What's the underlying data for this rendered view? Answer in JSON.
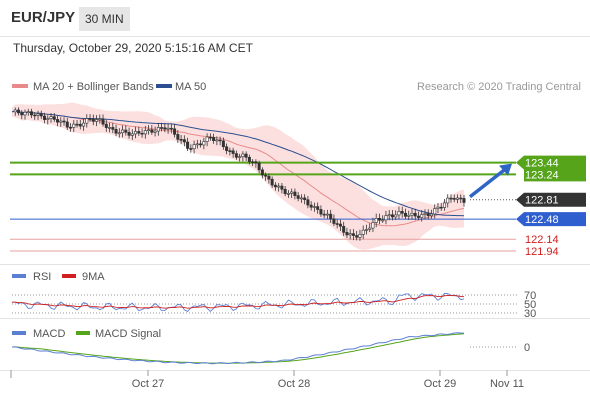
{
  "header": {
    "pair": "EUR/JPY",
    "timeframe": "30 MIN",
    "datetime": "Thursday, October 29, 2020 5:15:16 AM CET"
  },
  "colors": {
    "ma20": "#e88a8a",
    "bollinger_fill": "#fbd5d5",
    "ma50": "#2b4f91",
    "support_blue": "#2f5ecf",
    "resistance_green": "#55a41a",
    "red_level": "#e6a0a0",
    "price_label": "#333333",
    "rsi": "#5b7fd3",
    "rsi_ma": "#d0201f",
    "macd": "#5b7fd3",
    "macd_signal": "#55a41a",
    "candle_up": "#ffffff",
    "candle_down": "#333333"
  },
  "chart_data": [
    {
      "type": "candlestick",
      "legend": [
        "MA 20 + Bollinger Bands",
        "MA 50"
      ],
      "credit": "Research © 2020 Trading Central",
      "levels": [
        {
          "value": 123.44,
          "label": "123.44",
          "kind": "resistance"
        },
        {
          "value": 123.24,
          "label": "123.24",
          "kind": "resistance"
        },
        {
          "value": 122.81,
          "label": "122.81",
          "kind": "last_price"
        },
        {
          "value": 122.48,
          "label": "122.48",
          "kind": "support"
        },
        {
          "value": 122.14,
          "label": "122.14",
          "kind": "support"
        },
        {
          "value": 121.94,
          "label": "121.94",
          "kind": "support"
        }
      ],
      "ylim": [
        121.94,
        124.4
      ],
      "close_path": [
        124.3,
        124.25,
        124.28,
        124.22,
        124.15,
        124.05,
        124.1,
        124.18,
        124.12,
        124.0,
        123.98,
        123.9,
        123.95,
        124.02,
        124.05,
        123.85,
        123.7,
        123.78,
        123.85,
        123.75,
        123.6,
        123.55,
        123.4,
        123.2,
        123.05,
        122.9,
        122.85,
        122.75,
        122.6,
        122.45,
        122.3,
        122.2,
        122.25,
        122.45,
        122.55,
        122.58,
        122.52,
        122.55,
        122.6,
        122.7,
        122.85,
        122.81
      ],
      "projection": {
        "from": 122.81,
        "to": 123.44
      }
    },
    {
      "type": "line",
      "legend": [
        "RSI",
        "9MA"
      ],
      "y_ticks": [
        "70",
        "50",
        "30"
      ]
    },
    {
      "type": "line",
      "legend": [
        "MACD",
        "MACD Signal"
      ],
      "y_ticks": [
        "0"
      ],
      "x_ticks": [
        "Oct 27",
        "Oct 28",
        "Oct 29",
        "Nov 11"
      ]
    }
  ]
}
